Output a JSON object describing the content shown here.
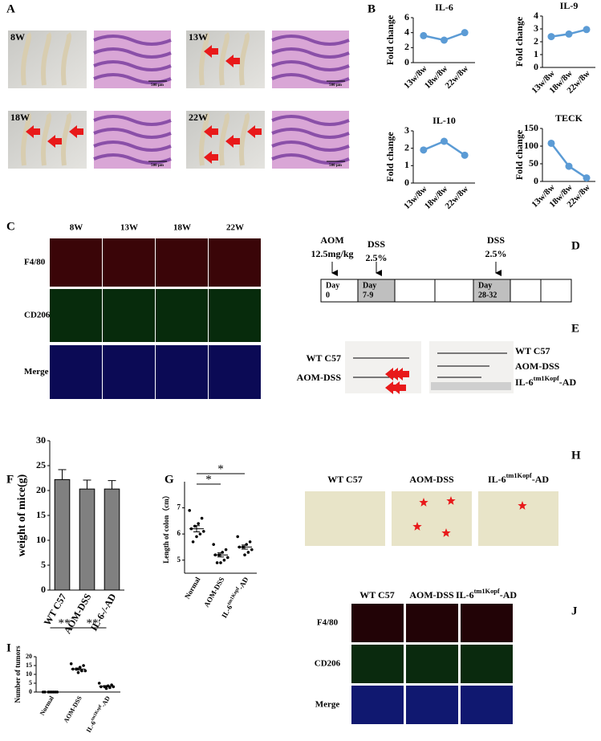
{
  "panel_labels": [
    "A",
    "B",
    "C",
    "D",
    "E",
    "F",
    "G",
    "H",
    "I",
    "J"
  ],
  "panel_a": {
    "time_points": [
      "8W",
      "13W",
      "18W",
      "22W"
    ],
    "scale_bar": "500 μm"
  },
  "panel_c": {
    "columns": [
      "8W",
      "13W",
      "18W",
      "22W"
    ],
    "rows": [
      "F4/80",
      "CD206",
      "Merge"
    ]
  },
  "panel_d": {
    "injections": [
      {
        "agent": "AOM",
        "dose": "12.5mg/kg"
      },
      {
        "agent": "DSS",
        "dose": "2.5%"
      },
      {
        "agent": "DSS",
        "dose": "2.5%"
      }
    ],
    "days": [
      {
        "label": "Day",
        "range": "0"
      },
      {
        "label": "Day",
        "range": "7-9"
      },
      {
        "label": "Day",
        "range": "28-32"
      }
    ]
  },
  "panel_e": {
    "left_labels": [
      "WT C57",
      "AOM-DSS"
    ],
    "right_labels": [
      "WT C57",
      "AOM-DSS",
      {
        "base": "IL-6",
        "sup": "tm1Kopf",
        "suffix": "-AD"
      }
    ]
  },
  "panel_h": {
    "labels": [
      "WT C57",
      "AOM-DSS",
      {
        "base": "IL-6",
        "sup": "tm1Kopf",
        "suffix": "-AD"
      }
    ]
  },
  "panel_j": {
    "columns": [
      "WT C57",
      "AOM-DSS",
      {
        "base": "IL-6",
        "sup": "tm1Kopf",
        "suffix": "-AD"
      }
    ],
    "rows": [
      "F4/80",
      "CD206",
      "Merge"
    ]
  },
  "chart_data": [
    {
      "type": "line",
      "title": "IL-6",
      "y_label": "Fold change",
      "categories": [
        "13w/8w",
        "18w/8w",
        "22w/8w"
      ],
      "values": [
        3.6,
        3.0,
        4.0
      ],
      "color": "#5b9bd5",
      "ylim": [
        0,
        6
      ],
      "yticks": [
        0,
        2,
        4,
        6
      ]
    },
    {
      "type": "line",
      "title": "IL-9",
      "y_label": "Fold change",
      "categories": [
        "13w/8w",
        "18w/8w",
        "22w/8w"
      ],
      "values": [
        2.4,
        2.6,
        2.95
      ],
      "color": "#5b9bd5",
      "ylim": [
        0,
        4
      ],
      "yticks": [
        0,
        1,
        2,
        3,
        4
      ]
    },
    {
      "type": "line",
      "title": "IL-10",
      "y_label": "Fold change",
      "categories": [
        "13w/8w",
        "18w/8w",
        "22w/8w"
      ],
      "values": [
        1.9,
        2.4,
        1.6
      ],
      "color": "#5b9bd5",
      "ylim": [
        0,
        3
      ],
      "yticks": [
        0,
        1,
        2,
        3
      ]
    },
    {
      "type": "line",
      "title": "TECK",
      "y_label": "Fold change",
      "categories": [
        "13w/8w",
        "18w/8w",
        "22w/8w"
      ],
      "values": [
        108,
        43,
        10
      ],
      "color": "#5b9bd5",
      "ylim": [
        0,
        150
      ],
      "yticks": [
        0,
        50,
        100,
        150
      ]
    },
    {
      "type": "bar",
      "y_label": "weight of mice(g)",
      "categories": [
        "WT C57",
        "AOM-DSS",
        "IL-6-/-AD"
      ],
      "values": [
        22.2,
        20.3,
        20.3
      ],
      "errors": [
        2.0,
        1.8,
        1.7
      ],
      "color": "#808080",
      "ylim": [
        0,
        30
      ],
      "yticks": [
        0,
        5,
        10,
        15,
        20,
        25,
        30
      ]
    },
    {
      "type": "strip",
      "y_label": "Length of colon（cm）",
      "categories": [
        "Normal",
        "AOM-DSS",
        {
          "base": "IL-6",
          "sup": "tm1Kopf",
          "suffix": "-AD"
        }
      ],
      "groups": [
        [
          6.9,
          6.6,
          6.4,
          6.3,
          6.2,
          6.1,
          6.0,
          5.9,
          5.7
        ],
        [
          5.6,
          5.4,
          5.3,
          5.2,
          5.2,
          5.1,
          5.0,
          4.9,
          4.9
        ],
        [
          5.9,
          5.7,
          5.6,
          5.5,
          5.5,
          5.4,
          5.3,
          5.2
        ]
      ],
      "means": [
        6.2,
        5.2,
        5.5
      ],
      "errors": [
        0.12,
        0.08,
        0.08
      ],
      "significance": [
        "*",
        "*"
      ],
      "ylim": [
        4.5,
        8
      ],
      "yticks": [
        5,
        6,
        7
      ]
    },
    {
      "type": "strip",
      "y_label": "Number of tumors",
      "categories": [
        "Normal",
        "AOM-DSS",
        {
          "base": "IL-6",
          "sup": "tm1Kopf",
          "suffix": "-AD"
        }
      ],
      "groups": [
        [
          0,
          0,
          0,
          0,
          0,
          0,
          0,
          0
        ],
        [
          16,
          15,
          14,
          13,
          13,
          12,
          12,
          11
        ],
        [
          5,
          4,
          3.5,
          3,
          3,
          3,
          2.5,
          2
        ]
      ],
      "means": [
        0,
        13,
        3.3
      ],
      "errors": [
        0,
        0.6,
        0.35
      ],
      "significance": [
        "**",
        "**"
      ],
      "ylim": [
        0,
        20
      ],
      "yticks": [
        0,
        5,
        10,
        15,
        20
      ]
    }
  ]
}
